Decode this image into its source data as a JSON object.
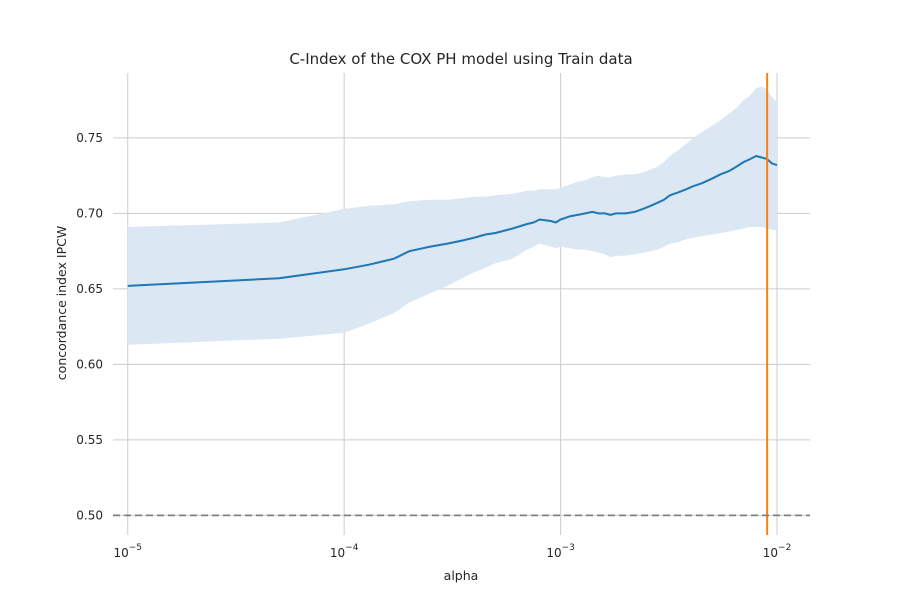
{
  "chart_data": {
    "type": "line",
    "title": "C-Index of the COX PH model using Train data",
    "xlabel": "alpha",
    "ylabel": "concordance index IPCW",
    "x_scale": "log",
    "xlim": [
      8.55e-06,
      0.0142
    ],
    "ylim": [
      0.487,
      0.793
    ],
    "x_ticks": [
      {
        "value": 1e-05,
        "base": "10",
        "exp": "−5"
      },
      {
        "value": 0.0001,
        "base": "10",
        "exp": "−4"
      },
      {
        "value": 0.001,
        "base": "10",
        "exp": "−3"
      },
      {
        "value": 0.01,
        "base": "10",
        "exp": "−2"
      }
    ],
    "y_ticks": [
      {
        "value": 0.5,
        "label": "0.50"
      },
      {
        "value": 0.55,
        "label": "0.55"
      },
      {
        "value": 0.6,
        "label": "0.60"
      },
      {
        "value": 0.65,
        "label": "0.65"
      },
      {
        "value": 0.7,
        "label": "0.70"
      },
      {
        "value": 0.75,
        "label": "0.75"
      }
    ],
    "grid": true,
    "series": [
      {
        "x": [
          1e-05,
          5e-05,
          0.0001,
          0.00013,
          0.00017,
          0.0002,
          0.00025,
          0.0003,
          0.00035,
          0.0004,
          0.00045,
          0.0005,
          0.0006,
          0.0007,
          0.00075,
          0.0008,
          0.0009,
          0.00095,
          0.001,
          0.0011,
          0.0012,
          0.0013,
          0.0014,
          0.0015,
          0.0016,
          0.0017,
          0.0018,
          0.002,
          0.0022,
          0.0024,
          0.0026,
          0.0028,
          0.003,
          0.0032,
          0.0035,
          0.0038,
          0.0041,
          0.0045,
          0.005,
          0.0055,
          0.006,
          0.0065,
          0.007,
          0.0075,
          0.008,
          0.0085,
          0.009,
          0.0095,
          0.01
        ],
        "y": [
          0.652,
          0.657,
          0.663,
          0.666,
          0.67,
          0.675,
          0.678,
          0.68,
          0.682,
          0.684,
          0.686,
          0.687,
          0.69,
          0.693,
          0.694,
          0.696,
          0.695,
          0.694,
          0.696,
          0.698,
          0.699,
          0.7,
          0.701,
          0.7,
          0.7,
          0.699,
          0.7,
          0.7,
          0.701,
          0.703,
          0.705,
          0.707,
          0.709,
          0.712,
          0.714,
          0.716,
          0.718,
          0.72,
          0.723,
          0.726,
          0.728,
          0.731,
          0.734,
          0.736,
          0.738,
          0.737,
          0.736,
          0.733,
          0.732
        ],
        "lower": [
          0.613,
          0.617,
          0.621,
          0.627,
          0.634,
          0.641,
          0.647,
          0.652,
          0.657,
          0.661,
          0.664,
          0.667,
          0.67,
          0.676,
          0.678,
          0.68,
          0.678,
          0.677,
          0.678,
          0.677,
          0.676,
          0.676,
          0.675,
          0.674,
          0.673,
          0.671,
          0.672,
          0.672,
          0.673,
          0.674,
          0.675,
          0.676,
          0.678,
          0.68,
          0.681,
          0.683,
          0.684,
          0.685,
          0.686,
          0.687,
          0.688,
          0.689,
          0.69,
          0.691,
          0.691,
          0.691,
          0.69,
          0.689,
          0.689
        ],
        "upper": [
          0.691,
          0.694,
          0.703,
          0.705,
          0.706,
          0.708,
          0.709,
          0.709,
          0.71,
          0.711,
          0.711,
          0.712,
          0.713,
          0.715,
          0.715,
          0.716,
          0.716,
          0.716,
          0.717,
          0.719,
          0.721,
          0.722,
          0.724,
          0.725,
          0.724,
          0.724,
          0.725,
          0.726,
          0.726,
          0.727,
          0.729,
          0.731,
          0.734,
          0.738,
          0.742,
          0.746,
          0.75,
          0.754,
          0.758,
          0.762,
          0.766,
          0.77,
          0.775,
          0.778,
          0.783,
          0.784,
          0.782,
          0.777,
          0.774
        ]
      }
    ],
    "reference_lines": [
      {
        "orientation": "vertical",
        "value": 0.009
      },
      {
        "orientation": "horizontal",
        "value": 0.5
      }
    ],
    "colors": {
      "line": "#1f77b4",
      "band": "#dbe7f2",
      "vline": "#ff7f0e",
      "hline": "#808080",
      "grid": "#cccccc"
    }
  }
}
